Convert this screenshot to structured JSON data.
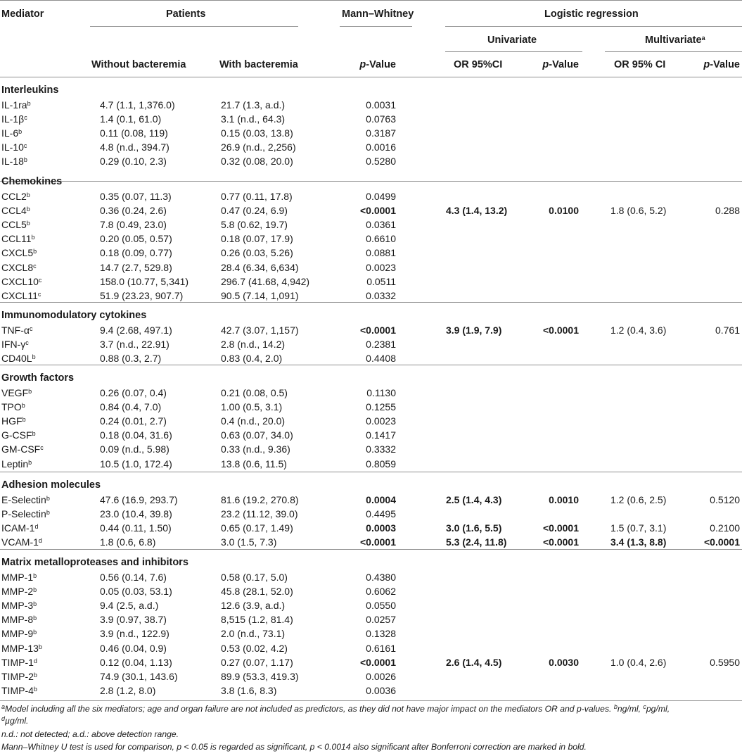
{
  "header": {
    "mediator": "Mediator",
    "patients": "Patients",
    "mann_whitney": "Mann–Whitney",
    "logistic_regression": "Logistic regression",
    "univariate": "Univariate",
    "multivariate": "Multivariate",
    "multivariate_sup": "a",
    "without_bacteremia": "Without bacteremia",
    "with_bacteremia": "With bacteremia",
    "p_value_italic": "p",
    "p_value_suffix": "-Value",
    "or_95ci_uni": "OR 95%CI",
    "or_95ci_multi": "OR 95% CI"
  },
  "sections": [
    {
      "title": "Interleukins",
      "rows": [
        {
          "mediator": "IL-1ra",
          "sup": "b",
          "without": "4.7 (1.1, 1,376.0)",
          "with": "21.7 (1.3, a.d.)",
          "p": "0.0031"
        },
        {
          "mediator": "IL-1β",
          "sup": "c",
          "without": "1.4 (0.1, 61.0)",
          "with": "3.1 (n.d., 64.3)",
          "p": "0.0763"
        },
        {
          "mediator": "IL-6",
          "sup": "b",
          "without": "0.11 (0.08, 119)",
          "with": "0.15 (0.03, 13.8)",
          "p": "0.3187"
        },
        {
          "mediator": "IL-10",
          "sup": "c",
          "without": "4.8 (n.d., 394.7)",
          "with": "26.9 (n.d., 2,256)",
          "p": "0.0016"
        },
        {
          "mediator": "IL-18",
          "sup": "b",
          "without": "0.29 (0.10, 2.3)",
          "with": "0.32 (0.08, 20.0)",
          "p": "0.5280"
        }
      ]
    },
    {
      "title": "Chemokines",
      "rows": [
        {
          "mediator": "CCL2",
          "sup": "b",
          "without": "0.35 (0.07, 11.3)",
          "with": "0.77 (0.11, 17.8)",
          "p": "0.0499"
        },
        {
          "mediator": "CCL4",
          "sup": "b",
          "without": "0.36 (0.24, 2.6)",
          "with": "0.47 (0.24, 6.9)",
          "p": "<0.0001",
          "p_bold": true,
          "or_uni": "4.3 (1.4, 13.2)",
          "p_uni": "0.0100",
          "uni_bold": true,
          "or_multi": "1.8 (0.6, 5.2)",
          "p_multi": "0.288"
        },
        {
          "mediator": "CCL5",
          "sup": "b",
          "without": "7.8 (0.49, 23.0)",
          "with": "5.8 (0.62, 19.7)",
          "p": "0.0361"
        },
        {
          "mediator": "CCL11",
          "sup": "b",
          "without": "0.20 (0.05, 0.57)",
          "with": "0.18 (0.07, 17.9)",
          "p": "0.6610"
        },
        {
          "mediator": "CXCL5",
          "sup": "b",
          "without": "0.18 (0.09, 0.77)",
          "with": "0.26 (0.03, 5.26)",
          "p": "0.0881"
        },
        {
          "mediator": "CXCL8",
          "sup": "c",
          "without": "14.7 (2.7, 529.8)",
          "with": "28.4 (6.34, 6,634)",
          "p": "0.0023"
        },
        {
          "mediator": "CXCL10",
          "sup": "c",
          "without": "158.0 (10.77, 5,341)",
          "with": "296.7 (41.68, 4,942)",
          "p": "0.0511"
        },
        {
          "mediator": "CXCL11",
          "sup": "c",
          "without": "51.9 (23.23, 907.7)",
          "with": "90.5 (7.14, 1,091)",
          "p": "0.0332"
        }
      ]
    },
    {
      "title": "Immunomodulatory cytokines",
      "rows": [
        {
          "mediator": "TNF-α",
          "sup": "c",
          "without": "9.4 (2.68, 497.1)",
          "with": "42.7 (3.07, 1,157)",
          "p": "<0.0001",
          "p_bold": true,
          "or_uni": "3.9 (1.9, 7.9)",
          "p_uni": "<0.0001",
          "uni_bold": true,
          "or_multi": "1.2 (0.4, 3.6)",
          "p_multi": "0.761"
        },
        {
          "mediator": "IFN-γ",
          "sup": "c",
          "without": "3.7 (n.d., 22.91)",
          "with": "2.8 (n.d., 14.2)",
          "p": "0.2381"
        },
        {
          "mediator": "CD40L",
          "sup": "b",
          "without": "0.88 (0.3, 2.7)",
          "with": "0.83 (0.4, 2.0)",
          "p": "0.4408"
        }
      ]
    },
    {
      "title": "Growth factors",
      "rows": [
        {
          "mediator": "VEGF",
          "sup": "b",
          "without": "0.26 (0.07, 0.4)",
          "with": "0.21 (0.08, 0.5)",
          "p": "0.1130"
        },
        {
          "mediator": "TPO",
          "sup": "b",
          "without": "0.84 (0.4, 7.0)",
          "with": "1.00 (0.5, 3.1)",
          "p": "0.1255"
        },
        {
          "mediator": "HGF",
          "sup": "b",
          "without": "0.24 (0.01, 2.7)",
          "with": "0.4 (n.d., 20.0)",
          "p": "0.0023"
        },
        {
          "mediator": "G-CSF",
          "sup": "b",
          "without": "0.18 (0.04, 31.6)",
          "with": "0.63 (0.07, 34.0)",
          "p": "0.1417"
        },
        {
          "mediator": "GM-CSF",
          "sup": "c",
          "without": "0.09 (n.d., 5.98)",
          "with": "0.33 (n.d., 9.36)",
          "p": "0.3332"
        },
        {
          "mediator": "Leptin",
          "sup": "b",
          "without": "10.5 (1.0, 172.4)",
          "with": "13.8 (0.6, 11.5)",
          "p": "0.8059"
        }
      ]
    },
    {
      "title": "Adhesion molecules",
      "rows": [
        {
          "mediator": "E-Selectin",
          "sup": "b",
          "without": "47.6 (16.9, 293.7)",
          "with": "81.6 (19.2, 270.8)",
          "p": "0.0004",
          "p_bold": true,
          "or_uni": "2.5 (1.4, 4.3)",
          "p_uni": "0.0010",
          "uni_bold": true,
          "or_multi": "1.2 (0.6, 2.5)",
          "p_multi": "0.5120"
        },
        {
          "mediator": "P-Selectin",
          "sup": "b",
          "without": "23.0 (10.4, 39.8)",
          "with": "23.2 (11.12, 39.0)",
          "p": "0.4495"
        },
        {
          "mediator": "ICAM-1",
          "sup": "d",
          "without": "0.44 (0.11, 1.50)",
          "with": "0.65 (0.17, 1.49)",
          "p": "0.0003",
          "p_bold": true,
          "or_uni": "3.0 (1.6, 5.5)",
          "p_uni": "<0.0001",
          "uni_bold": true,
          "or_multi": "1.5 (0.7, 3.1)",
          "p_multi": "0.2100"
        },
        {
          "mediator": "VCAM-1",
          "sup": "d",
          "without": "1.8 (0.6, 6.8)",
          "with": "3.0 (1.5, 7.3)",
          "p": "<0.0001",
          "p_bold": true,
          "or_uni": "5.3 (2.4, 11.8)",
          "p_uni": "<0.0001",
          "uni_bold": true,
          "or_multi": "3.4 (1.3, 8.8)",
          "p_multi": "<0.0001",
          "multi_bold": true
        }
      ]
    },
    {
      "title": "Matrix metalloproteases and inhibitors",
      "rows": [
        {
          "mediator": "MMP-1",
          "sup": "b",
          "without": "0.56 (0.14, 7.6)",
          "with": "0.58 (0.17, 5.0)",
          "p": "0.4380"
        },
        {
          "mediator": "MMP-2",
          "sup": "b",
          "without": "0.05 (0.03, 53.1)",
          "with": "45.8 (28.1, 52.0)",
          "p": "0.6062"
        },
        {
          "mediator": "MMP-3",
          "sup": "b",
          "without": "9.4 (2.5, a.d.)",
          "with": "12.6 (3.9, a.d.)",
          "p": "0.0550"
        },
        {
          "mediator": "MMP-8",
          "sup": "b",
          "without": "3.9 (0.97, 38.7)",
          "with": "8,515 (1.2, 81.4)",
          "p": "0.0257"
        },
        {
          "mediator": "MMP-9",
          "sup": "b",
          "without": "3.9 (n.d., 122.9)",
          "with": "2.0 (n.d., 73.1)",
          "p": "0.1328"
        },
        {
          "mediator": "MMP-13",
          "sup": "b",
          "without": "0.46 (0.04, 0.9)",
          "with": "0.53 (0.02, 4.2)",
          "p": "0.6161"
        },
        {
          "mediator": "TIMP-1",
          "sup": "d",
          "without": "0.12 (0.04, 1.13)",
          "with": "0.27 (0.07, 1.17)",
          "p": "<0.0001",
          "p_bold": true,
          "or_uni": "2.6 (1.4, 4.5)",
          "p_uni": "0.0030",
          "uni_bold": true,
          "or_multi": "1.0 (0.4, 2.6)",
          "p_multi": "0.5950"
        },
        {
          "mediator": "TIMP-2",
          "sup": "b",
          "without": "74.9 (30.1, 143.6)",
          "with": "89.9 (53.3, 419.3)",
          "p": "0.0026"
        },
        {
          "mediator": "TIMP-4",
          "sup": "b",
          "without": "2.8 (1.2, 8.0)",
          "with": "3.8 (1.6, 8.3)",
          "p": "0.0036"
        }
      ]
    }
  ],
  "footnotes": {
    "line1": [
      {
        "sup": "a"
      },
      {
        "text": "Model including all the six mediators; age and organ failure are not included as predictors, as they did not have major impact on the mediators OR and p-values. "
      },
      {
        "sup": "b"
      },
      {
        "text": "ng/ml, "
      },
      {
        "sup": "c"
      },
      {
        "text": "pg/ml,"
      }
    ],
    "line2": [
      {
        "sup": "d"
      },
      {
        "text": "µg/ml."
      }
    ],
    "line3": [
      {
        "text": "n.d.: not detected; a.d.: above detection range."
      }
    ],
    "line4": [
      {
        "text": "Mann–Whitney U test is used for comparison, p < 0.05 is regarded as significant, p < 0.0014 also significant after Bonferroni correction are marked in bold."
      }
    ]
  }
}
